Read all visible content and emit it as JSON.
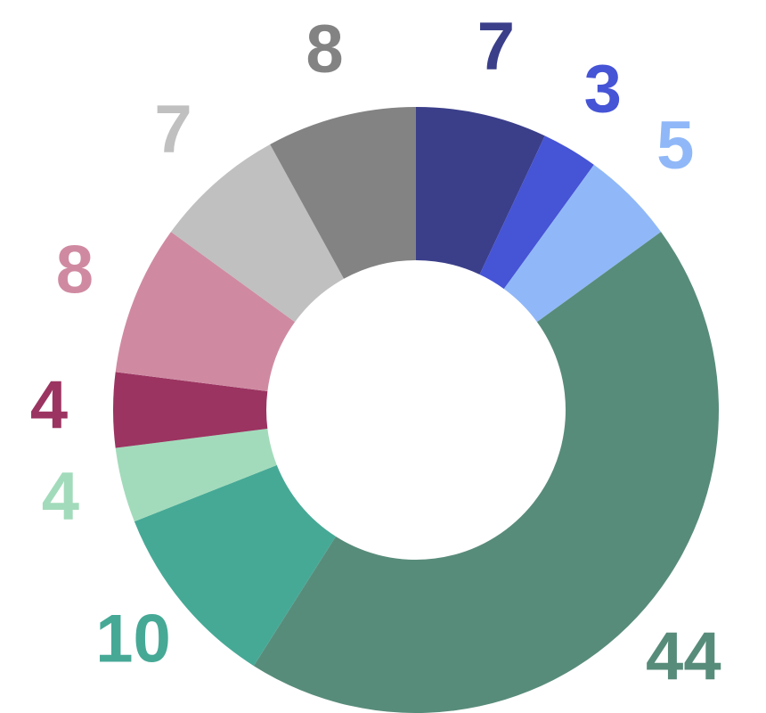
{
  "chart_data": {
    "type": "donut",
    "values": [
      7,
      3,
      5,
      44,
      10,
      4,
      4,
      8,
      7,
      8
    ],
    "colors": [
      "#3b3f8a",
      "#4654d6",
      "#90b8f8",
      "#588c7a",
      "#46a996",
      "#a2dbbb",
      "#9b3461",
      "#cf8aa2",
      "#c0c0c0",
      "#838383"
    ]
  }
}
